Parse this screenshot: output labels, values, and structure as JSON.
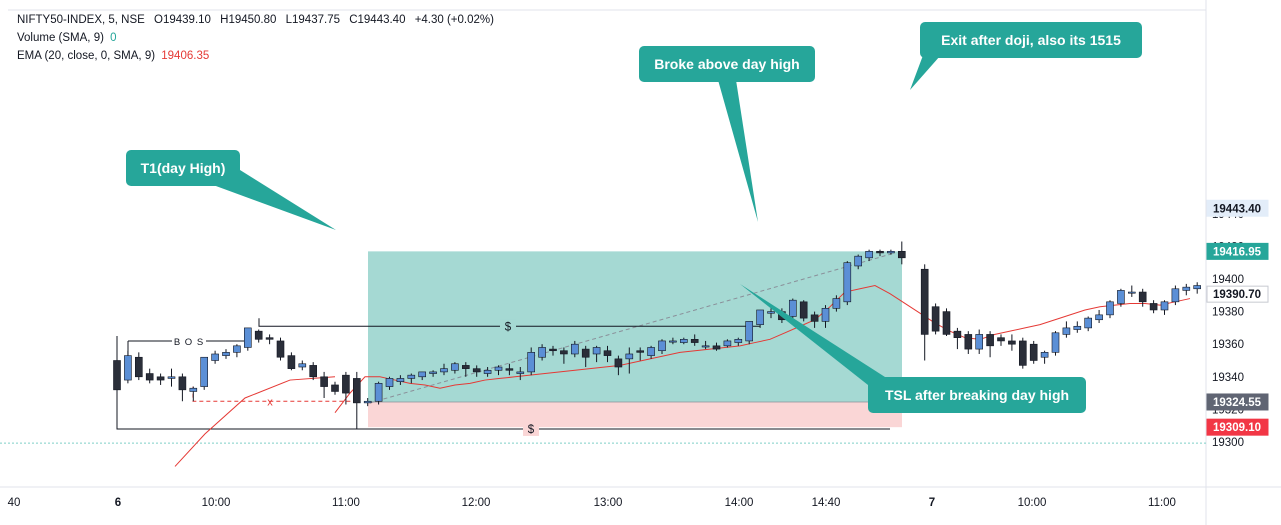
{
  "legend": {
    "symbol": "NIFTY50-INDEX, 5, NSE",
    "open": "O19439.10",
    "high": "H19450.80",
    "low": "L19437.75",
    "close": "C19443.40",
    "change": "+4.30 (+0.02%)",
    "volume_label": "Volume (SMA, 9)",
    "volume_value": "0",
    "ema_label": "EMA (20, close, 0, SMA, 9)",
    "ema_value": "19406.35"
  },
  "colors": {
    "candle_body": "#5b8fd6",
    "candle_bear": "#2a2e39",
    "ema_line": "#e53935",
    "profit_zone": "#a5d9d3",
    "loss_zone": "#fad6d6",
    "callout": "#26a69a",
    "price_badge_dark": "#606573",
    "price_badge_red": "#f23645",
    "price_badge_green": "#26a69a"
  },
  "chart_data": {
    "type": "candlestick",
    "yticks": [
      19300,
      19320,
      19340,
      19360,
      19380,
      19400,
      19420,
      19440
    ],
    "ylim": [
      19285,
      19448
    ],
    "xticks": [
      "40",
      "6",
      "10:00",
      "11:00",
      "12:00",
      "13:00",
      "14:00",
      "14:40",
      "7",
      "10:00",
      "11:00"
    ],
    "price_badges": [
      {
        "value": "19443.40",
        "style": "top"
      },
      {
        "value": "19416.95",
        "style": "green"
      },
      {
        "value": "19390.70",
        "style": "plain"
      },
      {
        "value": "19324.55",
        "style": "dark"
      },
      {
        "value": "19309.10",
        "style": "red"
      }
    ],
    "annotations": {
      "t1": "T1(day High)",
      "broke": "Broke above day high",
      "exit": "Exit after doji, also its 1515",
      "tsl": "TSL after breaking day high",
      "bos": "B O S",
      "x_mark": "x",
      "dollar": "$"
    },
    "position": {
      "entry": 19324.55,
      "target": 19416.95,
      "stop": 19309.1
    },
    "candles": [
      [
        19350,
        19349,
        19332,
        19330
      ],
      [
        19338,
        19356,
        19353,
        19336
      ],
      [
        19352,
        19355,
        19340,
        19338
      ],
      [
        19342,
        19345,
        19338,
        19336
      ],
      [
        19340,
        19342,
        19338,
        19335
      ],
      [
        19339,
        19345,
        19340,
        19334
      ],
      [
        19340,
        19342,
        19332,
        19325
      ],
      [
        19331,
        19334,
        19333,
        19325
      ],
      [
        19334,
        19350,
        19352,
        19332
      ],
      [
        19350,
        19356,
        19354,
        19348
      ],
      [
        19353,
        19357,
        19355,
        19351
      ],
      [
        19355,
        19360,
        19359,
        19352
      ],
      [
        19358,
        19370,
        19370,
        19356
      ],
      [
        19368,
        19369,
        19363,
        19361
      ],
      [
        19364,
        19366,
        19363,
        19360
      ],
      [
        19362,
        19364,
        19352,
        19350
      ],
      [
        19353,
        19355,
        19345,
        19344
      ],
      [
        19346,
        19350,
        19348,
        19344
      ],
      [
        19347,
        19349,
        19340,
        19338
      ],
      [
        19340,
        19343,
        19334,
        19327
      ],
      [
        19335,
        19337,
        19331,
        19329
      ],
      [
        19341,
        19343,
        19330,
        19323
      ],
      [
        19339,
        19343,
        19324,
        19308
      ],
      [
        19324,
        19327,
        19325,
        19322
      ],
      [
        19325,
        19337,
        19336,
        19323
      ],
      [
        19334,
        19340,
        19339,
        19332
      ],
      [
        19337,
        19341,
        19339,
        19335
      ],
      [
        19339,
        19342,
        19341,
        19336
      ],
      [
        19340,
        19343,
        19343,
        19338
      ],
      [
        19342,
        19344,
        19343,
        19340
      ],
      [
        19343,
        19348,
        19345,
        19341
      ],
      [
        19344,
        19349,
        19348,
        19342
      ],
      [
        19347,
        19349,
        19345,
        19340
      ],
      [
        19345,
        19347,
        19343,
        19340
      ],
      [
        19342,
        19346,
        19344,
        19340
      ],
      [
        19344,
        19347,
        19346,
        19341
      ],
      [
        19345,
        19348,
        19344,
        19341
      ],
      [
        19342,
        19346,
        19343,
        19338
      ],
      [
        19343,
        19358,
        19355,
        19341
      ],
      [
        19352,
        19360,
        19358,
        19350
      ],
      [
        19357,
        19359,
        19356,
        19353
      ],
      [
        19356,
        19358,
        19354,
        19348
      ],
      [
        19354,
        19362,
        19360,
        19352
      ],
      [
        19357,
        19359,
        19352,
        19346
      ],
      [
        19354,
        19359,
        19358,
        19349
      ],
      [
        19356,
        19359,
        19353,
        19349
      ],
      [
        19351,
        19353,
        19346,
        19341
      ],
      [
        19351,
        19358,
        19354,
        19342
      ],
      [
        19356,
        19358,
        19355,
        19350
      ],
      [
        19353,
        19359,
        19358,
        19351
      ],
      [
        19356,
        19363,
        19362,
        19354
      ],
      [
        19362,
        19364,
        19362,
        19360
      ],
      [
        19361,
        19364,
        19363,
        19360
      ],
      [
        19363,
        19366,
        19361,
        19359
      ],
      [
        19359,
        19362,
        19359,
        19357
      ],
      [
        19359,
        19361,
        19357,
        19356
      ],
      [
        19359,
        19363,
        19362,
        19358
      ],
      [
        19361,
        19364,
        19363,
        19359
      ],
      [
        19362,
        19374,
        19374,
        19360
      ],
      [
        19372,
        19380,
        19381,
        19370
      ],
      [
        19379,
        19382,
        19380,
        19376
      ],
      [
        19380,
        19382,
        19375,
        19373
      ],
      [
        19377,
        19388,
        19387,
        19375
      ],
      [
        19386,
        19387,
        19376,
        19374
      ],
      [
        19378,
        19380,
        19374,
        19370
      ],
      [
        19374,
        19384,
        19382,
        19370
      ],
      [
        19382,
        19390,
        19388,
        19380
      ],
      [
        19386,
        19411,
        19410,
        19384
      ],
      [
        19408,
        19415,
        19414,
        19406
      ],
      [
        19413,
        19418,
        19417,
        19411
      ],
      [
        19417,
        19418,
        19416,
        19414
      ],
      [
        19416,
        19418,
        19417,
        19415
      ],
      [
        19417,
        19423,
        19413,
        19409
      ],
      [
        19406,
        19409,
        19366,
        19350
      ],
      [
        19383,
        19385,
        19368,
        19366
      ],
      [
        19380,
        19382,
        19366,
        19365
      ],
      [
        19368,
        19370,
        19364,
        19357
      ],
      [
        19366,
        19368,
        19357,
        19354
      ],
      [
        19357,
        19369,
        19366,
        19354
      ],
      [
        19366,
        19368,
        19359,
        19352
      ],
      [
        19364,
        19366,
        19362,
        19359
      ],
      [
        19362,
        19366,
        19360,
        19356
      ],
      [
        19362,
        19364,
        19347,
        19345
      ],
      [
        19360,
        19362,
        19350,
        19348
      ],
      [
        19352,
        19356,
        19355,
        19348
      ],
      [
        19355,
        19368,
        19367,
        19353
      ],
      [
        19366,
        19374,
        19370,
        19364
      ],
      [
        19369,
        19374,
        19371,
        19367
      ],
      [
        19370,
        19377,
        19376,
        19368
      ],
      [
        19375,
        19381,
        19378,
        19373
      ],
      [
        19378,
        19387,
        19386,
        19376
      ],
      [
        19385,
        19394,
        19393,
        19383
      ],
      [
        19392,
        19396,
        19392,
        19389
      ],
      [
        19392,
        19394,
        19386,
        19383
      ],
      [
        19385,
        19387,
        19381,
        19379
      ],
      [
        19381,
        19387,
        19386,
        19378
      ],
      [
        19386,
        19396,
        19394,
        19384
      ],
      [
        19393,
        19397,
        19395,
        19390
      ],
      [
        19394,
        19398,
        19396,
        19391
      ],
      [
        19396,
        19398,
        19390,
        19388
      ]
    ],
    "ema": [
      [
        19336,
        19305,
        19259,
        19285
      ],
      [
        19318,
        19330,
        19340,
        19340,
        19338,
        19336,
        19335,
        19333,
        19335,
        19336,
        19338,
        19339,
        19340,
        19341,
        19342,
        19343,
        19344,
        19345,
        19346,
        19347,
        19349,
        19351,
        19353,
        19355,
        19356,
        19357,
        19358,
        19359,
        19361,
        19363,
        19367,
        19371,
        19375,
        19383,
        19392,
        19394,
        19396,
        19391,
        19385,
        19379,
        19373,
        19368,
        19364,
        19363,
        19366,
        19368,
        19370,
        19372,
        19375,
        19378,
        19381,
        19383,
        19384,
        19385,
        19385,
        19384,
        19386,
        19388
      ]
    ]
  }
}
